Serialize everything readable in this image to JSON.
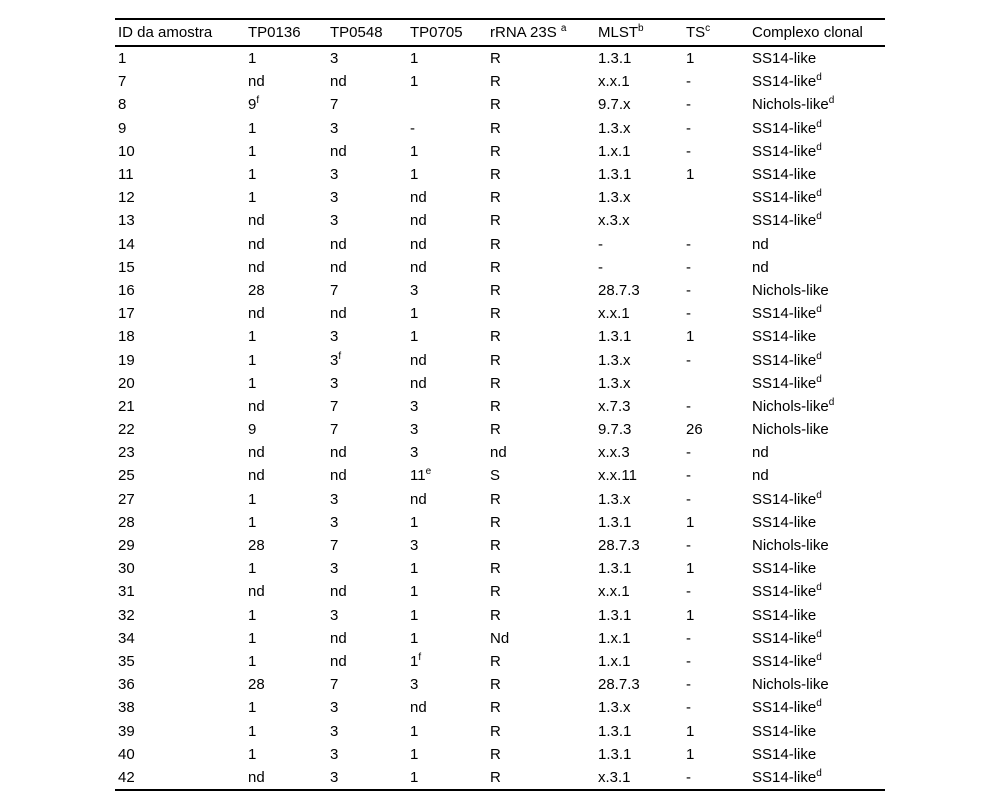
{
  "page": {
    "background": "#ffffff",
    "text_color": "#000000",
    "rule_color": "#000000"
  },
  "table": {
    "superscript_marker": "^",
    "columns": [
      "ID da amostra",
      "TP0136",
      "TP0548",
      "TP0705",
      "rRNA 23S ^a",
      "MLST^b",
      "TS^c",
      "Complexo clonal"
    ],
    "rows": [
      [
        "1",
        "1",
        "3",
        "1",
        "R",
        "1.3.1",
        "1",
        "SS14-like"
      ],
      [
        "7",
        "nd",
        "nd",
        "1",
        "R",
        "x.x.1",
        "-",
        "SS14-like^d"
      ],
      [
        "8",
        "9^f",
        "7",
        "",
        "R",
        "9.7.x",
        "-",
        "Nichols-like^d"
      ],
      [
        "9",
        "1",
        "3",
        "-",
        "R",
        "1.3.x",
        "-",
        "SS14-like^d"
      ],
      [
        "10",
        "1",
        "nd",
        "1",
        "R",
        "1.x.1",
        "-",
        "SS14-like^d"
      ],
      [
        "11",
        "1",
        "3",
        "1",
        "R",
        "1.3.1",
        "1",
        "SS14-like"
      ],
      [
        "12",
        "1",
        "3",
        "nd",
        "R",
        "1.3.x",
        "",
        "SS14-like^d"
      ],
      [
        "13",
        "nd",
        "3",
        "nd",
        "R",
        "x.3.x",
        "",
        "SS14-like^d"
      ],
      [
        "14",
        "nd",
        "nd",
        "nd",
        "R",
        "-",
        "-",
        "nd"
      ],
      [
        "15",
        "nd",
        "nd",
        "nd",
        "R",
        "-",
        "-",
        "nd"
      ],
      [
        "16",
        "28",
        "7",
        "3",
        "R",
        "28.7.3",
        "-",
        "Nichols-like"
      ],
      [
        "17",
        "nd",
        "nd",
        "1",
        "R",
        "x.x.1",
        "-",
        "SS14-like^d"
      ],
      [
        "18",
        "1",
        "3",
        "1",
        "R",
        "1.3.1",
        "1",
        "SS14-like"
      ],
      [
        "19",
        "1",
        "3^f",
        "nd",
        "R",
        "1.3.x",
        "-",
        "SS14-like^d"
      ],
      [
        "20",
        "1",
        "3",
        "nd",
        "R",
        "1.3.x",
        "",
        "SS14-like^d"
      ],
      [
        "21",
        "nd",
        "7",
        "3",
        "R",
        "x.7.3",
        "-",
        "Nichols-like^d"
      ],
      [
        "22",
        "9",
        "7",
        "3",
        "R",
        "9.7.3",
        "26",
        "Nichols-like"
      ],
      [
        "23",
        "nd",
        "nd",
        "3",
        "nd",
        "x.x.3",
        "-",
        "nd"
      ],
      [
        "25",
        "nd",
        "nd",
        "11^e",
        "S",
        "x.x.11",
        "-",
        "nd"
      ],
      [
        "27",
        "1",
        "3",
        "nd",
        "R",
        "1.3.x",
        "-",
        "SS14-like^d"
      ],
      [
        "28",
        "1",
        "3",
        "1",
        "R",
        "1.3.1",
        "1",
        "SS14-like"
      ],
      [
        "29",
        "28",
        "7",
        "3",
        "R",
        "28.7.3",
        "-",
        "Nichols-like"
      ],
      [
        "30",
        "1",
        "3",
        "1",
        "R",
        "1.3.1",
        "1",
        "SS14-like"
      ],
      [
        "31",
        "nd",
        "nd",
        "1",
        "R",
        "x.x.1",
        "-",
        "SS14-like^d"
      ],
      [
        "32",
        "1",
        "3",
        "1",
        "R",
        "1.3.1",
        "1",
        "SS14-like"
      ],
      [
        "34",
        "1",
        "nd",
        "1",
        "Nd",
        "1.x.1",
        "-",
        "SS14-like^d"
      ],
      [
        "35",
        "1",
        "nd",
        "1^f",
        "R",
        "1.x.1",
        "-",
        "SS14-like^d"
      ],
      [
        "36",
        "28",
        "7",
        "3",
        "R",
        "28.7.3",
        "-",
        "Nichols-like"
      ],
      [
        "38",
        "1",
        "3",
        "nd",
        "R",
        "1.3.x",
        "-",
        "SS14-like^d"
      ],
      [
        "39",
        "1",
        "3",
        "1",
        "R",
        "1.3.1",
        "1",
        "SS14-like"
      ],
      [
        "40",
        "1",
        "3",
        "1",
        "R",
        "1.3.1",
        "1",
        "SS14-like"
      ],
      [
        "42",
        "nd",
        "3",
        "1",
        "R",
        "x.3.1",
        "-",
        "SS14-like^d"
      ]
    ]
  }
}
